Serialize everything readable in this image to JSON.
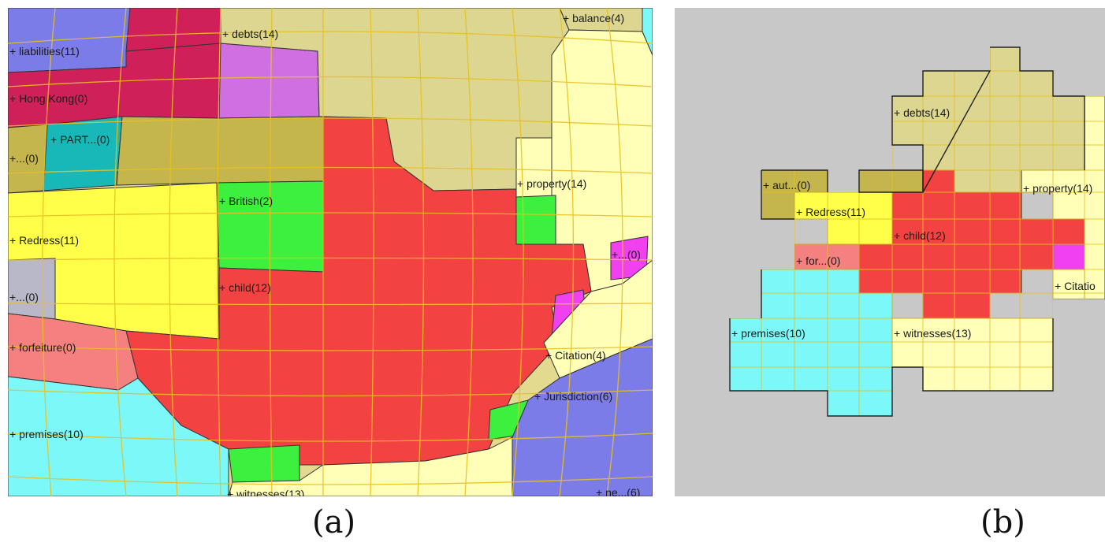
{
  "captions": {
    "a": "(a)",
    "b": "(b)"
  },
  "panel_a": {
    "labels": {
      "debts": "+ debts(14)",
      "balance": "+ balance(4)",
      "liabilities": "+ liabilities(11)",
      "hongkong": "+ Hong Kong(0)",
      "part": "+ PART...(0)",
      "dots1": "+...(0)",
      "property": "+ property(14)",
      "british": "+ British(2)",
      "redress": "+ Redress(11)",
      "dots_right": "+...(0)",
      "child": "+ child(12)",
      "dots2": "+...(0)",
      "forfeiture": "+ forfeiture(0)",
      "citation": "+ Citation(4)",
      "jurisdiction": "+ Jurisdiction(6)",
      "premises": "+ premises(10)",
      "witnesses": "+ witnesses(13)",
      "bottom_right": "+ ne...(6)"
    }
  },
  "panel_b": {
    "labels": {
      "debts": "+ debts(14)",
      "aut": "+ aut...(0)",
      "property": "+ property(14)",
      "redress": "+ Redress(11)",
      "child": "+ child(12)",
      "for": "+ for...(0)",
      "citation": "+ Citatio",
      "premises": "+ premises(10)",
      "witnesses": "+ witnesses(13)"
    }
  },
  "colors": {
    "red": "#f24242",
    "yellow": "#ffff4a",
    "pale_yellow": "#ffffb8",
    "khaki": "#dcd690",
    "olive": "#c4b64c",
    "green": "#3ef03e",
    "teal": "#19b8b8",
    "cyan": "#7cf8f8",
    "magenta": "#f040f0",
    "crimson": "#d0205a",
    "violet": "#d070e0",
    "periwinkle": "#7c7ce8",
    "salmon": "#f48080",
    "grey": "#b8b8c8",
    "grid": "#e8c020"
  }
}
